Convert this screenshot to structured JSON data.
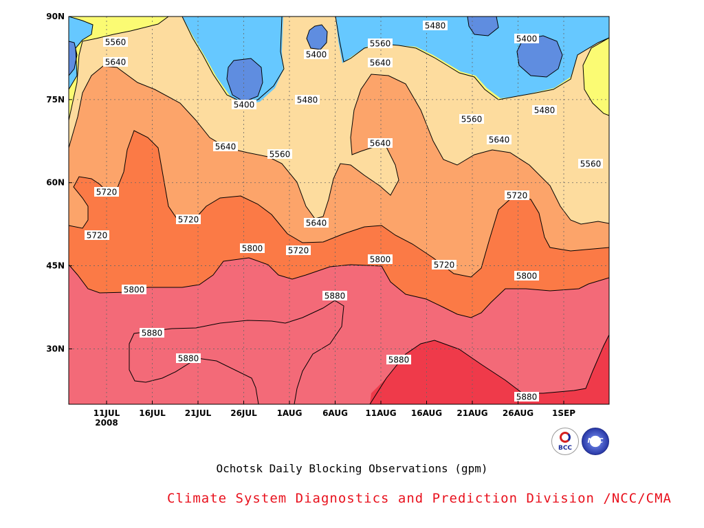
{
  "chart_data": {
    "type": "contour",
    "title": "Ochotsk Daily Blocking Observations (gpm)",
    "credit": "Climate System Diagnostics and Prediction Division /NCC/CMA",
    "x_ticks": [
      "11JUL",
      "16JUL",
      "21JUL",
      "26JUL",
      "1AUG",
      "6AUG",
      "11AUG",
      "16AUG",
      "21AUG",
      "26AUG",
      "1SEP"
    ],
    "x_year_label": "2008",
    "y_ticks": [
      "90N",
      "75N",
      "60N",
      "45N",
      "30N"
    ],
    "ylim": [
      20,
      90
    ],
    "grid": true,
    "levels": [
      5400,
      5480,
      5560,
      5640,
      5720,
      5800,
      5880
    ],
    "level_colors": {
      "below_5400": "#5f8de0",
      "5400_5480": "#66c8ff",
      "5480_5560": "#fbfb73",
      "5560_5640": "#fddc9e",
      "5640_5720": "#fca46a",
      "5720_5800": "#fb7a46",
      "5800_5880": "#f36a78",
      "above_5880": "#ef3a4a"
    },
    "contour_labels": [
      "5560",
      "5640",
      "5720",
      "5720",
      "5880",
      "5720",
      "5800",
      "5880",
      "5640",
      "5800",
      "5400",
      "5560",
      "5400",
      "5480",
      "5640",
      "5720",
      "5880",
      "5880",
      "5560",
      "5640",
      "5640",
      "5800",
      "5880",
      "5480",
      "5720",
      "5560",
      "5640",
      "5400",
      "5480",
      "5720",
      "5800",
      "5880",
      "5560"
    ]
  },
  "logos": {
    "bcc_text": "BCC",
    "ncc_text": "NCC"
  }
}
